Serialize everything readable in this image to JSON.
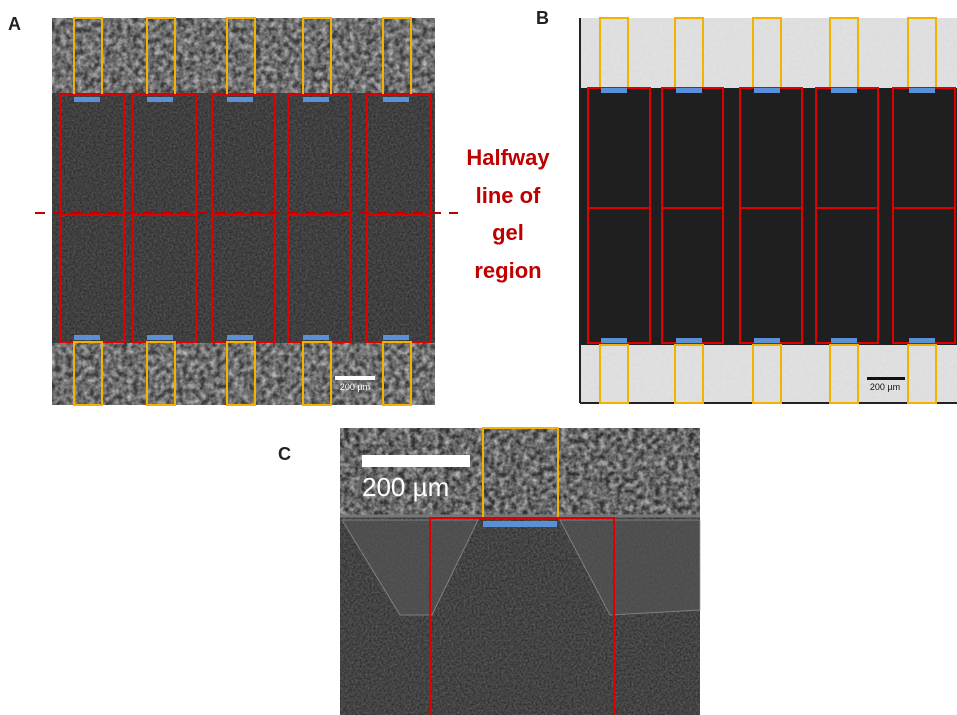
{
  "panels": [
    {
      "label": "A",
      "scale_bar": "200 µm"
    },
    {
      "label": "B",
      "scale_bar": "200 µm"
    },
    {
      "label": "C",
      "scale_bar": "200 µm"
    }
  ],
  "annotation": {
    "lines": [
      "Halfway",
      "line of",
      "gel",
      "region"
    ]
  }
}
